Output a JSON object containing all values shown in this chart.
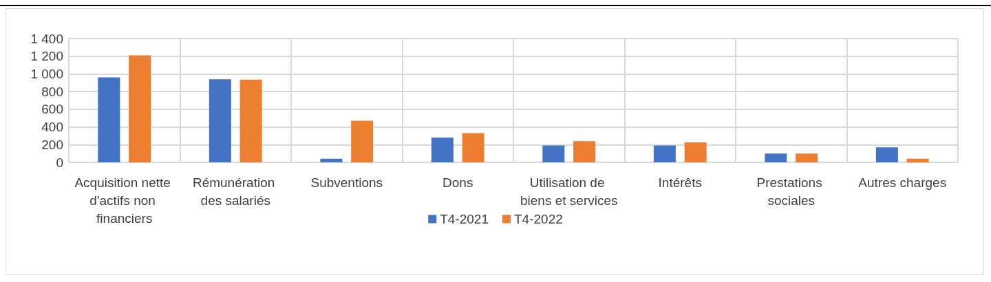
{
  "chart_data": {
    "type": "bar",
    "categories": [
      "Acquisition nette d'actifs non financiers",
      "Rémunération des salariés",
      "Subventions",
      "Dons",
      "Utilisation de biens et services",
      "Intérêts",
      "Prestations sociales",
      "Autres charges"
    ],
    "series": [
      {
        "name": "T4-2021",
        "color": "#4472c4",
        "values": [
          960,
          940,
          40,
          280,
          190,
          190,
          100,
          170
        ]
      },
      {
        "name": "T4-2022",
        "color": "#ed7d31",
        "values": [
          1210,
          935,
          470,
          330,
          240,
          225,
          100,
          40
        ]
      }
    ],
    "ylim": [
      0,
      1400
    ],
    "yticks": [
      0,
      200,
      400,
      600,
      800,
      {
        "value": 1000,
        "label": "1 000"
      },
      {
        "value": 1200,
        "label": "1 200"
      },
      {
        "value": 1400,
        "label": "1 400"
      }
    ],
    "grid": true,
    "legend": "bottom"
  }
}
